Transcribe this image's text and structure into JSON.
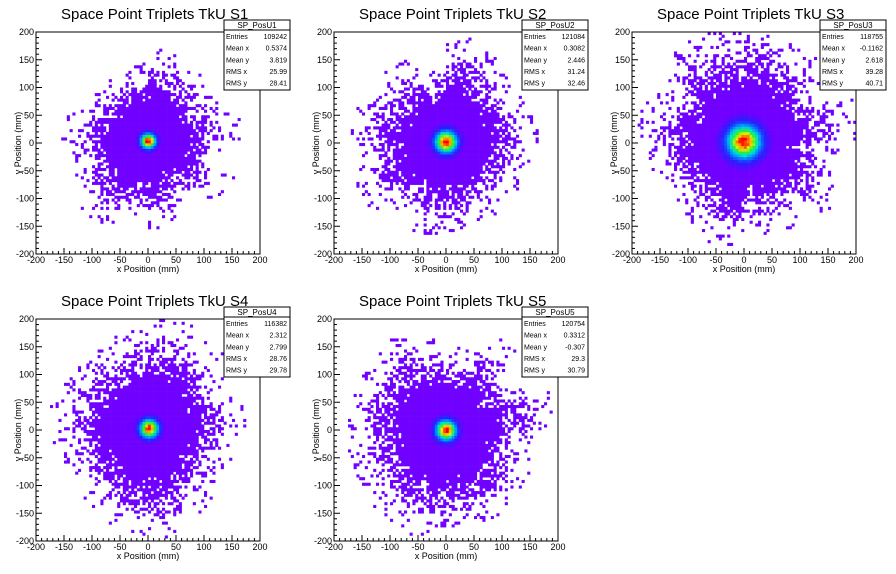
{
  "chart_data": [
    {
      "type": "heatmap",
      "title": "Space Point Triplets TkU S1",
      "xlabel": "x Position (mm)",
      "ylabel": "y Position (mm)",
      "xlim": [
        -200,
        200
      ],
      "ylim": [
        -200,
        200
      ],
      "xticks": [
        -200,
        -150,
        -100,
        -50,
        0,
        50,
        100,
        150,
        200
      ],
      "yticks": [
        -200,
        -150,
        -100,
        -50,
        0,
        50,
        100,
        150,
        200
      ],
      "palette": "rainbow (violet low to red high)",
      "stats": {
        "name": "SP_PosU1",
        "rows": [
          [
            "Entries",
            "109242"
          ],
          [
            "Mean x",
            "0.5374"
          ],
          [
            "Mean y",
            "3.819"
          ],
          [
            "RMS x",
            "25.99"
          ],
          [
            "RMS y",
            "28.41"
          ]
        ]
      },
      "distribution": {
        "center_x": 0.54,
        "center_y": 3.82,
        "rms_x": 25.99,
        "rms_y": 28.41,
        "core_sigma": 9,
        "halo_radius": 120
      }
    },
    {
      "type": "heatmap",
      "title": "Space Point Triplets TkU S2",
      "xlabel": "x Position (mm)",
      "ylabel": "y Position (mm)",
      "xlim": [
        -200,
        200
      ],
      "ylim": [
        -200,
        200
      ],
      "xticks": [
        -200,
        -150,
        -100,
        -50,
        0,
        50,
        100,
        150,
        200
      ],
      "yticks": [
        -200,
        -150,
        -100,
        -50,
        0,
        50,
        100,
        150,
        200
      ],
      "palette": "rainbow (violet low to red high)",
      "stats": {
        "name": "SP_PosU2",
        "rows": [
          [
            "Entries",
            "121084"
          ],
          [
            "Mean x",
            "0.3082"
          ],
          [
            "Mean y",
            "2.446"
          ],
          [
            "RMS x",
            "31.24"
          ],
          [
            "RMS y",
            "32.46"
          ]
        ]
      },
      "distribution": {
        "center_x": 0.31,
        "center_y": 2.45,
        "rms_x": 31.24,
        "rms_y": 32.46,
        "core_sigma": 13,
        "halo_radius": 135
      }
    },
    {
      "type": "heatmap",
      "title": "Space Point Triplets TkU S3",
      "xlabel": "x Position (mm)",
      "ylabel": "y Position (mm)",
      "xlim": [
        -200,
        200
      ],
      "ylim": [
        -200,
        200
      ],
      "xticks": [
        -200,
        -150,
        -100,
        -50,
        0,
        50,
        100,
        150,
        200
      ],
      "yticks": [
        -200,
        -150,
        -100,
        -50,
        0,
        50,
        100,
        150,
        200
      ],
      "palette": "rainbow (violet low to red high)",
      "stats": {
        "name": "SP_PosU3",
        "rows": [
          [
            "Entries",
            "118755"
          ],
          [
            "Mean x",
            "-0.1162"
          ],
          [
            "Mean y",
            "2.618"
          ],
          [
            "RMS x",
            "39.28"
          ],
          [
            "RMS y",
            "40.71"
          ]
        ]
      },
      "distribution": {
        "center_x": -0.12,
        "center_y": 2.62,
        "rms_x": 39.28,
        "rms_y": 40.71,
        "core_sigma": 20,
        "halo_radius": 150
      }
    },
    {
      "type": "heatmap",
      "title": "Space Point Triplets TkU S4",
      "xlabel": "x Position (mm)",
      "ylabel": "y Position (mm)",
      "xlim": [
        -200,
        200
      ],
      "ylim": [
        -200,
        200
      ],
      "xticks": [
        -200,
        -150,
        -100,
        -50,
        0,
        50,
        100,
        150,
        200
      ],
      "yticks": [
        -200,
        -150,
        -100,
        -50,
        0,
        50,
        100,
        150,
        200
      ],
      "palette": "rainbow (violet low to red high)",
      "stats": {
        "name": "SP_PosU4",
        "rows": [
          [
            "Entries",
            "116382"
          ],
          [
            "Mean x",
            "2.312"
          ],
          [
            "Mean y",
            "2.799"
          ],
          [
            "RMS x",
            "28.76"
          ],
          [
            "RMS y",
            "29.78"
          ]
        ]
      },
      "distribution": {
        "center_x": 2.31,
        "center_y": 2.8,
        "rms_x": 28.76,
        "rms_y": 29.78,
        "core_sigma": 11,
        "halo_radius": 140
      }
    },
    {
      "type": "heatmap",
      "title": "Space Point Triplets TkU S5",
      "xlabel": "x Position (mm)",
      "ylabel": "y Position (mm)",
      "xlim": [
        -200,
        200
      ],
      "ylim": [
        -200,
        200
      ],
      "xticks": [
        -200,
        -150,
        -100,
        -50,
        0,
        50,
        100,
        150,
        200
      ],
      "yticks": [
        -200,
        -150,
        -100,
        -50,
        0,
        50,
        100,
        150,
        200
      ],
      "palette": "rainbow (violet low to red high)",
      "stats": {
        "name": "SP_PosU5",
        "rows": [
          [
            "Entries",
            "120754"
          ],
          [
            "Mean x",
            "0.3312"
          ],
          [
            "Mean y",
            "-0.307"
          ],
          [
            "RMS x",
            "29.3"
          ],
          [
            "RMS y",
            "30.79"
          ]
        ]
      },
      "distribution": {
        "center_x": 0.33,
        "center_y": -0.31,
        "rms_x": 29.3,
        "rms_y": 30.79,
        "core_sigma": 12,
        "halo_radius": 140
      }
    }
  ]
}
